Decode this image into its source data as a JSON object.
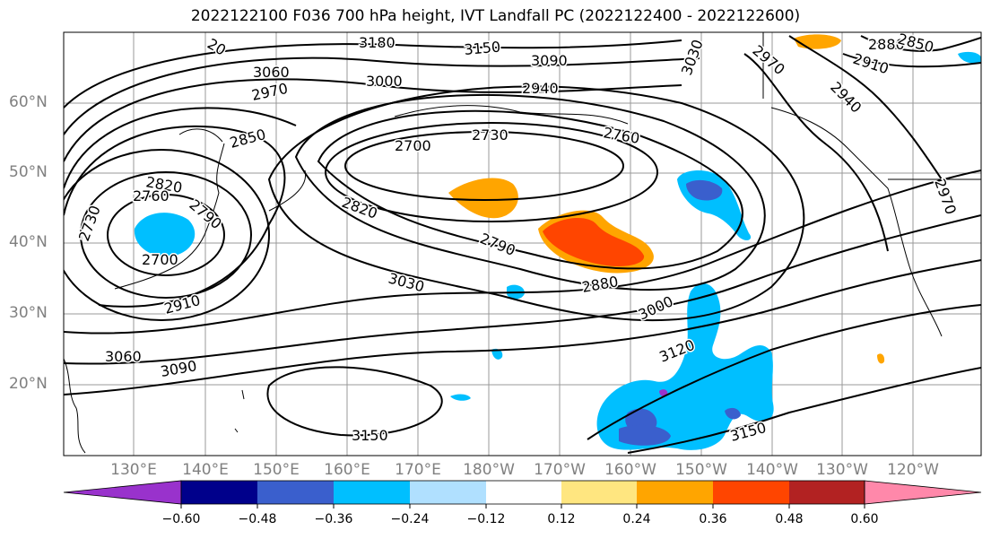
{
  "title": "2022122100 F036 700 hPa height, IVT Landfall PC (2022122400 - 2022122600)",
  "latitude_labels": [
    "60°N",
    "50°N",
    "40°N",
    "30°N",
    "20°N"
  ],
  "longitude_labels": [
    "130°E",
    "140°E",
    "150°E",
    "160°E",
    "170°E",
    "180°W",
    "170°W",
    "160°W",
    "150°W",
    "140°W",
    "130°W",
    "120°W"
  ],
  "contour_labels": [
    "3180",
    "3150",
    "3090",
    "3060",
    "3000",
    "2940",
    "2970",
    "2850",
    "2730",
    "2700",
    "2760",
    "2820",
    "2760",
    "2790",
    "2700",
    "2730",
    "2910",
    "3060",
    "3090",
    "3030",
    "2820",
    "2790",
    "2880",
    "3000",
    "3120",
    "3150",
    "3150",
    "3030",
    "2880",
    "2910",
    "2850",
    "2970",
    "2940",
    "2970",
    "20"
  ],
  "colorbar": {
    "tick_labels": [
      "−0.60",
      "−0.48",
      "−0.36",
      "−0.24",
      "−0.12",
      "0.12",
      "0.24",
      "0.36",
      "0.48",
      "0.60"
    ],
    "colors": [
      "#9932cc",
      "#00008b",
      "#3a5fcd",
      "#00bfff",
      "#b0e0ff",
      "#ffffff",
      "#ffe680",
      "#ffa500",
      "#ff4500",
      "#b22222",
      "#ff88aa"
    ]
  },
  "shading_colors": {
    "positive_weak": "#ffa500",
    "positive_strong": "#ff4500",
    "negative_weak": "#00bfff",
    "negative_strong": "#3a5fcd",
    "negative_extreme": "#9932cc"
  }
}
